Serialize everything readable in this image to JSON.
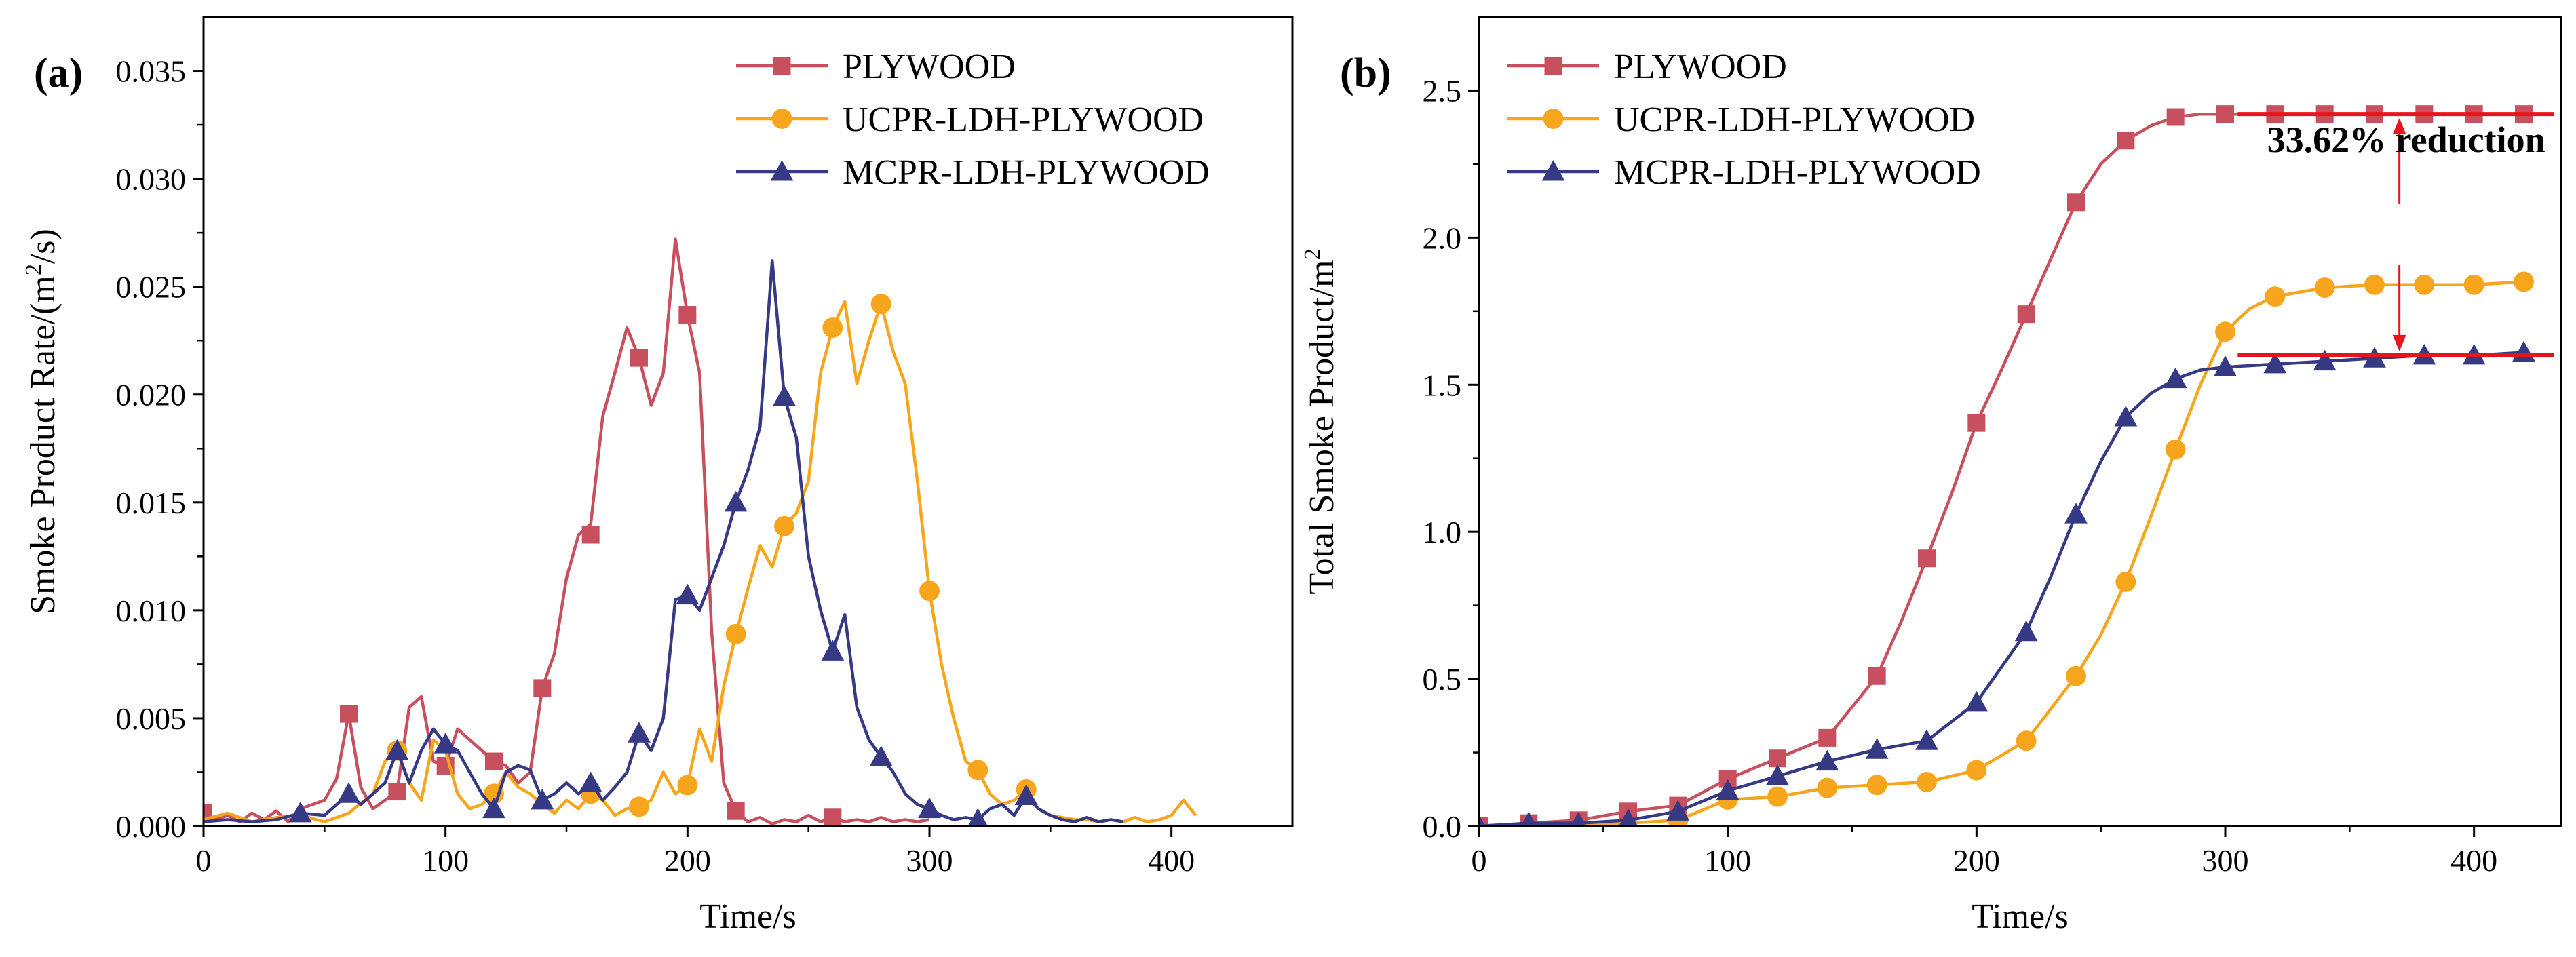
{
  "colors": {
    "plywood": "#c8505e",
    "ucpr": "#f7a51c",
    "mcpr": "#363a85",
    "annotation": "#e8141c"
  },
  "chart_data": [
    {
      "type": "line",
      "panel_label": "(a)",
      "xlabel": "Time/s",
      "ylabel_main": "Smoke Product Rate/(m",
      "ylabel_sup": "2",
      "ylabel_end": "/s)",
      "xlim": [
        0,
        450
      ],
      "ylim": [
        0,
        0.0375
      ],
      "xticks": [
        0,
        100,
        200,
        300,
        400
      ],
      "yticks": [
        0,
        0.005,
        0.01,
        0.015,
        0.02,
        0.025,
        0.03,
        0.035
      ],
      "xtick_labels": [
        "0",
        "100",
        "200",
        "300",
        "400"
      ],
      "ytick_labels": [
        "0.000",
        "0.005",
        "0.010",
        "0.015",
        "0.020",
        "0.025",
        "0.030",
        "0.035"
      ],
      "legend_position": "top-right",
      "series": [
        {
          "name": "PLYWOOD",
          "color_key": "plywood",
          "marker": "square",
          "x": [
            0,
            5,
            10,
            15,
            20,
            25,
            30,
            35,
            40,
            45,
            50,
            55,
            60,
            65,
            70,
            75,
            80,
            85,
            90,
            95,
            100,
            105,
            110,
            115,
            120,
            125,
            130,
            135,
            140,
            145,
            150,
            155,
            160,
            165,
            170,
            175,
            180,
            185,
            190,
            195,
            200,
            205,
            210,
            215,
            220,
            225,
            230,
            235,
            240,
            245,
            250,
            255,
            260,
            265,
            270,
            275,
            280,
            285,
            290,
            295,
            300
          ],
          "y": [
            0.0006,
            0.0003,
            0.0005,
            0.0002,
            0.0006,
            0.0003,
            0.0007,
            0.0002,
            0.0008,
            0.001,
            0.0012,
            0.0022,
            0.0052,
            0.0018,
            0.0008,
            0.0012,
            0.0016,
            0.0055,
            0.006,
            0.003,
            0.0028,
            0.0045,
            0.004,
            0.0035,
            0.003,
            0.0028,
            0.002,
            0.0025,
            0.0064,
            0.008,
            0.0115,
            0.0135,
            0.014,
            0.019,
            0.021,
            0.0231,
            0.0217,
            0.0195,
            0.021,
            0.0272,
            0.0237,
            0.021,
            0.009,
            0.002,
            0.0007,
            0.0002,
            0.0004,
            0.0001,
            0.0003,
            0.0002,
            0.0005,
            0.0002,
            0.0004,
            0.0002,
            0.0003,
            0.0002,
            0.0004,
            0.0002,
            0.0003,
            0.0002,
            0.0003
          ],
          "marker_x": [
            0,
            60,
            80,
            100,
            120,
            140,
            160,
            180,
            200,
            220,
            260
          ],
          "marker_y": [
            0.0006,
            0.0052,
            0.0016,
            0.0028,
            0.003,
            0.0064,
            0.0135,
            0.0217,
            0.0237,
            0.0007,
            0.0004
          ]
        },
        {
          "name": "UCPR-LDH-PLYWOOD",
          "color_key": "ucpr",
          "marker": "circle",
          "x": [
            0,
            10,
            20,
            30,
            40,
            50,
            60,
            70,
            75,
            80,
            85,
            90,
            95,
            100,
            105,
            110,
            115,
            120,
            125,
            130,
            135,
            140,
            145,
            150,
            155,
            160,
            165,
            170,
            175,
            180,
            185,
            190,
            195,
            200,
            205,
            210,
            215,
            220,
            225,
            230,
            235,
            240,
            245,
            250,
            255,
            260,
            265,
            270,
            275,
            280,
            285,
            290,
            295,
            300,
            305,
            310,
            315,
            320,
            325,
            330,
            335,
            340,
            345,
            350,
            355,
            360,
            365,
            370,
            375,
            380,
            385,
            390,
            395,
            400,
            405,
            410
          ],
          "y": [
            0.0003,
            0.0006,
            0.0002,
            0.0004,
            0.0005,
            0.0002,
            0.0006,
            0.0015,
            0.003,
            0.0035,
            0.002,
            0.0012,
            0.004,
            0.0035,
            0.0015,
            0.0008,
            0.001,
            0.0015,
            0.0025,
            0.0018,
            0.0015,
            0.001,
            0.0006,
            0.0012,
            0.0008,
            0.0015,
            0.0012,
            0.0005,
            0.0008,
            0.0009,
            0.0012,
            0.0025,
            0.0015,
            0.0019,
            0.0045,
            0.003,
            0.0065,
            0.0089,
            0.011,
            0.013,
            0.012,
            0.0139,
            0.0145,
            0.016,
            0.021,
            0.0231,
            0.0243,
            0.0205,
            0.0225,
            0.0242,
            0.022,
            0.0205,
            0.016,
            0.0109,
            0.0075,
            0.005,
            0.003,
            0.0026,
            0.0015,
            0.001,
            0.0012,
            0.0017,
            0.0008,
            0.0005,
            0.0004,
            0.0003,
            0.0003,
            0.0002,
            0.0003,
            0.0002,
            0.0004,
            0.0002,
            0.0003,
            0.0005,
            0.0012,
            0.0005
          ],
          "marker_x": [
            80,
            120,
            160,
            180,
            200,
            220,
            240,
            260,
            280,
            300,
            320,
            340
          ],
          "marker_y": [
            0.0035,
            0.0015,
            0.0015,
            0.0009,
            0.0019,
            0.0089,
            0.0139,
            0.0231,
            0.0242,
            0.0109,
            0.0026,
            0.0017
          ]
        },
        {
          "name": "MCPR-LDH-PLYWOOD",
          "color_key": "mcpr",
          "marker": "triangle",
          "x": [
            0,
            10,
            20,
            30,
            40,
            50,
            60,
            65,
            70,
            75,
            80,
            85,
            90,
            95,
            100,
            105,
            110,
            115,
            120,
            125,
            130,
            135,
            140,
            145,
            150,
            155,
            160,
            165,
            170,
            175,
            180,
            185,
            190,
            195,
            200,
            205,
            210,
            215,
            220,
            225,
            230,
            235,
            240,
            245,
            250,
            255,
            260,
            265,
            270,
            275,
            280,
            285,
            290,
            295,
            300,
            305,
            310,
            315,
            320,
            325,
            330,
            335,
            340,
            345,
            350,
            355,
            360,
            365,
            370,
            375,
            380
          ],
          "y": [
            0.0002,
            0.0003,
            0.0002,
            0.0003,
            0.0006,
            0.0005,
            0.0015,
            0.001,
            0.0015,
            0.002,
            0.0035,
            0.002,
            0.0035,
            0.0045,
            0.0038,
            0.0035,
            0.0025,
            0.0015,
            0.0008,
            0.0025,
            0.0028,
            0.0026,
            0.0012,
            0.0015,
            0.002,
            0.0015,
            0.002,
            0.0012,
            0.0018,
            0.0025,
            0.0043,
            0.0035,
            0.005,
            0.0105,
            0.0107,
            0.01,
            0.0115,
            0.013,
            0.015,
            0.0165,
            0.0185,
            0.0262,
            0.0199,
            0.018,
            0.0125,
            0.01,
            0.0081,
            0.0098,
            0.0055,
            0.004,
            0.0032,
            0.0025,
            0.0015,
            0.001,
            0.0008,
            0.0005,
            0.0003,
            0.0004,
            0.0003,
            0.0008,
            0.001,
            0.0005,
            0.0014,
            0.0008,
            0.0005,
            0.0003,
            0.0002,
            0.0004,
            0.0002,
            0.0003,
            0.0002
          ],
          "marker_x": [
            40,
            60,
            80,
            100,
            120,
            140,
            160,
            180,
            200,
            220,
            240,
            260,
            280,
            300,
            320,
            340
          ],
          "marker_y": [
            0.0006,
            0.0015,
            0.0035,
            0.0038,
            0.0008,
            0.0012,
            0.002,
            0.0043,
            0.0107,
            0.015,
            0.0199,
            0.0081,
            0.0032,
            0.0008,
            0.0003,
            0.0014
          ]
        }
      ]
    },
    {
      "type": "line",
      "panel_label": "(b)",
      "xlabel": "Time/s",
      "ylabel_main": "Total Smoke Product/m",
      "ylabel_sup": "2",
      "ylabel_end": "",
      "xlim": [
        0,
        435
      ],
      "ylim": [
        0,
        2.75
      ],
      "xticks": [
        0,
        100,
        200,
        300,
        400
      ],
      "yticks": [
        0,
        0.5,
        1.0,
        1.5,
        2.0,
        2.5
      ],
      "xtick_labels": [
        "0",
        "100",
        "200",
        "300",
        "400"
      ],
      "ytick_labels": [
        "0.0",
        "0.5",
        "1.0",
        "1.5",
        "2.0",
        "2.5"
      ],
      "legend_position": "top-left",
      "annotation": {
        "text": "33.62% reduction",
        "reference_high": 2.42,
        "reference_low": 1.6,
        "line_x_start": 305,
        "line_x_end": 435,
        "arrow_x": 370
      },
      "series": [
        {
          "name": "PLYWOOD",
          "color_key": "plywood",
          "marker": "square",
          "x": [
            0,
            20,
            40,
            60,
            80,
            100,
            120,
            140,
            160,
            170,
            180,
            190,
            200,
            210,
            220,
            230,
            240,
            250,
            260,
            270,
            280,
            290,
            300,
            320,
            340,
            360,
            380,
            400,
            420
          ],
          "y": [
            0.0,
            0.01,
            0.02,
            0.05,
            0.07,
            0.16,
            0.23,
            0.3,
            0.51,
            0.7,
            0.91,
            1.13,
            1.37,
            1.55,
            1.74,
            1.93,
            2.12,
            2.25,
            2.33,
            2.38,
            2.41,
            2.42,
            2.42,
            2.42,
            2.42,
            2.42,
            2.42,
            2.42,
            2.42
          ],
          "marker_x": [
            0,
            20,
            40,
            60,
            80,
            100,
            120,
            140,
            160,
            180,
            200,
            220,
            240,
            260,
            280,
            300,
            320,
            340,
            360,
            380,
            400,
            420
          ],
          "marker_y": [
            0.0,
            0.01,
            0.02,
            0.05,
            0.07,
            0.16,
            0.23,
            0.3,
            0.51,
            0.91,
            1.37,
            1.74,
            2.12,
            2.33,
            2.41,
            2.42,
            2.42,
            2.42,
            2.42,
            2.42,
            2.42,
            2.42
          ]
        },
        {
          "name": "UCPR-LDH-PLYWOOD",
          "color_key": "ucpr",
          "marker": "circle",
          "x": [
            0,
            20,
            40,
            60,
            80,
            100,
            120,
            140,
            160,
            180,
            200,
            220,
            240,
            250,
            260,
            270,
            280,
            290,
            300,
            310,
            320,
            340,
            360,
            380,
            400,
            420
          ],
          "y": [
            0.0,
            0.0,
            0.0,
            0.01,
            0.02,
            0.09,
            0.1,
            0.13,
            0.14,
            0.15,
            0.19,
            0.29,
            0.51,
            0.65,
            0.83,
            1.05,
            1.28,
            1.5,
            1.68,
            1.76,
            1.8,
            1.83,
            1.84,
            1.84,
            1.84,
            1.85
          ],
          "marker_x": [
            80,
            100,
            120,
            140,
            160,
            180,
            200,
            220,
            240,
            260,
            280,
            300,
            320,
            340,
            360,
            380,
            400,
            420
          ],
          "marker_y": [
            0.02,
            0.09,
            0.1,
            0.13,
            0.14,
            0.15,
            0.19,
            0.29,
            0.51,
            0.83,
            1.28,
            1.68,
            1.8,
            1.83,
            1.84,
            1.84,
            1.84,
            1.85
          ]
        },
        {
          "name": "MCPR-LDH-PLYWOOD",
          "color_key": "mcpr",
          "marker": "triangle",
          "x": [
            0,
            20,
            40,
            60,
            80,
            100,
            120,
            140,
            160,
            180,
            200,
            220,
            230,
            240,
            250,
            260,
            270,
            280,
            290,
            300,
            320,
            340,
            360,
            380,
            400,
            420
          ],
          "y": [
            0.0,
            0.01,
            0.01,
            0.02,
            0.05,
            0.12,
            0.17,
            0.22,
            0.26,
            0.29,
            0.42,
            0.66,
            0.85,
            1.06,
            1.24,
            1.39,
            1.47,
            1.52,
            1.55,
            1.56,
            1.57,
            1.58,
            1.59,
            1.6,
            1.6,
            1.61
          ],
          "marker_x": [
            0,
            20,
            40,
            60,
            80,
            100,
            120,
            140,
            160,
            180,
            200,
            220,
            240,
            260,
            280,
            300,
            320,
            340,
            360,
            380,
            400,
            420
          ],
          "marker_y": [
            0.0,
            0.01,
            0.01,
            0.02,
            0.05,
            0.12,
            0.17,
            0.22,
            0.26,
            0.29,
            0.42,
            0.66,
            1.06,
            1.39,
            1.52,
            1.56,
            1.57,
            1.58,
            1.59,
            1.6,
            1.6,
            1.61
          ]
        }
      ]
    }
  ]
}
